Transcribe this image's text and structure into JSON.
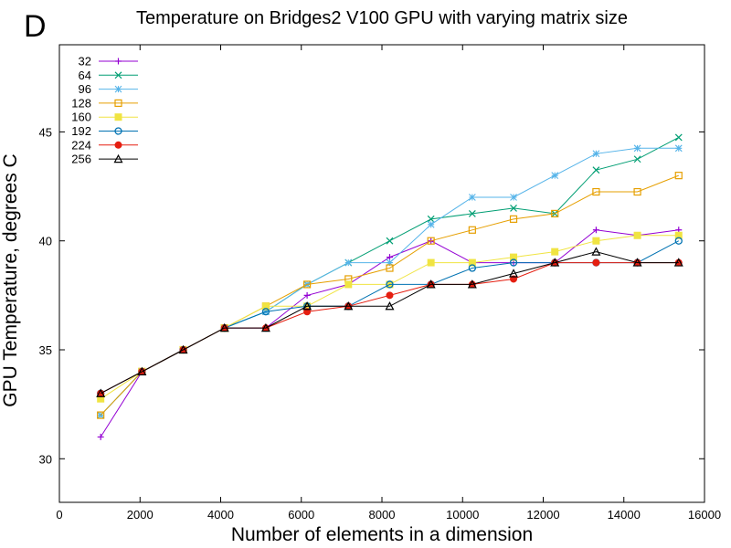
{
  "panel_label": "D",
  "chart_data": {
    "type": "line",
    "title": "Temperature on Bridges2 V100 GPU with varying matrix size",
    "xlabel": "Number of elements in a dimension",
    "ylabel": "GPU Temperature, degrees C",
    "xlim": [
      0,
      16000
    ],
    "ylim": [
      28,
      49
    ],
    "xticks": [
      0,
      2000,
      4000,
      6000,
      8000,
      10000,
      12000,
      14000,
      16000
    ],
    "yticks": [
      30,
      35,
      40,
      45
    ],
    "legend_position": "top-left",
    "x": [
      1024,
      2048,
      3072,
      4096,
      5120,
      6144,
      7168,
      8192,
      9216,
      10240,
      11264,
      12288,
      13312,
      14336,
      15360
    ],
    "series": [
      {
        "name": "32",
        "color": "#9400d3",
        "marker": "plus",
        "values": [
          31,
          34,
          35,
          36,
          36,
          37.5,
          38,
          39.25,
          40,
          39,
          39,
          39,
          40.5,
          40.25,
          40.5
        ]
      },
      {
        "name": "64",
        "color": "#009e73",
        "marker": "cross",
        "values": [
          32,
          34,
          35,
          36,
          36.75,
          38,
          39,
          40,
          41,
          41.25,
          41.5,
          41.25,
          43.25,
          43.75,
          44.75
        ]
      },
      {
        "name": "96",
        "color": "#56b4e9",
        "marker": "star",
        "values": [
          32,
          34,
          35,
          36,
          36.75,
          38,
          39,
          39,
          40.75,
          42,
          42,
          43,
          44,
          44.25,
          44.25
        ]
      },
      {
        "name": "128",
        "color": "#e69f00",
        "marker": "open-square",
        "values": [
          32,
          34,
          35,
          36,
          37,
          38,
          38.25,
          38.75,
          40,
          40.5,
          41,
          41.25,
          42.25,
          42.25,
          43
        ]
      },
      {
        "name": "160",
        "color": "#f0e442",
        "marker": "filled-square",
        "values": [
          32.75,
          34,
          35,
          36,
          37,
          37,
          38,
          38,
          39,
          39,
          39.25,
          39.5,
          40,
          40.25,
          40.25
        ]
      },
      {
        "name": "192",
        "color": "#0072b2",
        "marker": "open-circle",
        "values": [
          33,
          34,
          35,
          36,
          36.75,
          37,
          37,
          38,
          38,
          38.75,
          39,
          39,
          39,
          39,
          40
        ]
      },
      {
        "name": "224",
        "color": "#e51e10",
        "marker": "filled-circle",
        "values": [
          33,
          34,
          35,
          36,
          36,
          36.75,
          37,
          37.5,
          38,
          38,
          38.25,
          39,
          39,
          39,
          39
        ]
      },
      {
        "name": "256",
        "color": "#000000",
        "marker": "open-triangle",
        "values": [
          33,
          34,
          35,
          36,
          36,
          37,
          37,
          37,
          38,
          38,
          38.5,
          39,
          39.5,
          39,
          39
        ]
      }
    ]
  }
}
